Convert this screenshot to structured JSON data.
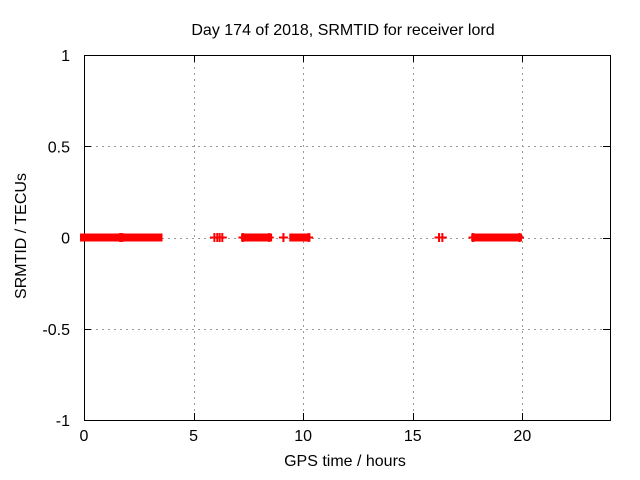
{
  "chart_data": {
    "type": "scatter",
    "title": "Day 174 of 2018, SRMTID for receiver lord",
    "xlabel": "GPS time / hours",
    "ylabel": "SRMTID / TECUs",
    "xlim": [
      0,
      24
    ],
    "ylim": [
      -1,
      1
    ],
    "xticks": [
      0,
      5,
      10,
      15,
      20
    ],
    "xtick_labels": [
      "0",
      "5",
      "10",
      "15",
      "20"
    ],
    "yticks": [
      -1,
      -0.5,
      0,
      0.5,
      1
    ],
    "ytick_labels": [
      "-1",
      "-0.5",
      "0",
      "0.5",
      "1"
    ],
    "grid": "dashed at every tick, mirrored inward tick marks on all four borders",
    "legend": "none",
    "series": [
      {
        "name": "SRMTID",
        "marker": "plus",
        "color": "#ff0000",
        "y_value": 0,
        "dense_segments_x_hours": [
          [
            0.0,
            0.55
          ],
          [
            0.7,
            0.95
          ],
          [
            1.1,
            1.5
          ],
          [
            1.8,
            3.4
          ],
          [
            7.35,
            8.4
          ],
          [
            9.55,
            10.15
          ],
          [
            17.85,
            19.8
          ]
        ],
        "isolated_points_x_hours": [
          1.65,
          1.75,
          5.95,
          6.08,
          6.19,
          6.31,
          7.25,
          8.45,
          9.1,
          10.25,
          16.2,
          16.35,
          17.75,
          19.87
        ]
      }
    ]
  },
  "colors": {
    "background": "#ffffff",
    "axis": "#000000",
    "grid": "#999999",
    "marker": "#ff0000",
    "text": "#000000"
  }
}
